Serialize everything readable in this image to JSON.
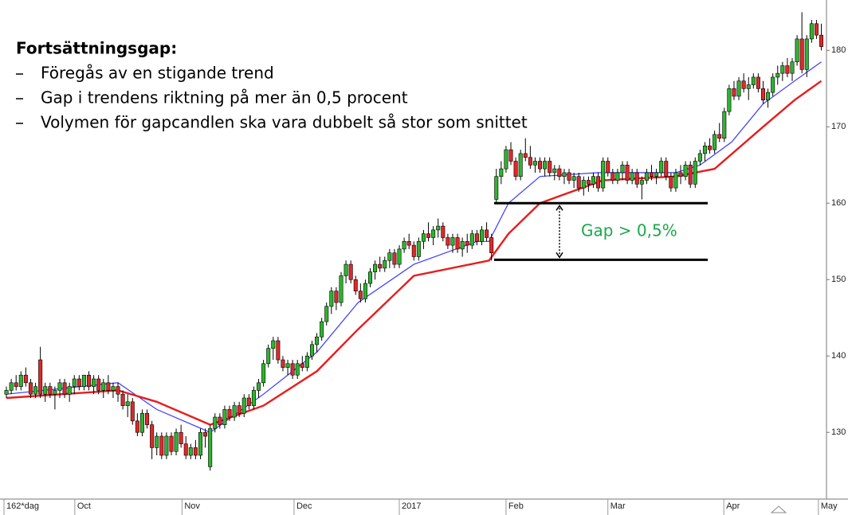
{
  "chart_data": {
    "type": "candlestick",
    "title": "Fortsättningsgap:",
    "bullets": [
      "Föregås av en stigande trend",
      "Gap i trendens riktning på mer än 0,5 procent",
      "Volymen för gapcandlen ska vara dubbelt så stor som snittet"
    ],
    "up_color": "#2db52d",
    "down_color": "#e02828",
    "xlim": [
      -0.5,
      168.9
    ],
    "xticks": [
      {
        "value": -0.5,
        "label": "162*dag"
      },
      {
        "value": 14.1,
        "label": "Oct"
      },
      {
        "value": 36.2,
        "label": "Nov"
      },
      {
        "value": 59.3,
        "label": "Dec"
      },
      {
        "value": 81,
        "label": "2017"
      },
      {
        "value": 103,
        "label": "Feb"
      },
      {
        "value": 124,
        "label": "Mar"
      },
      {
        "value": 147.9,
        "label": "Apr"
      },
      {
        "value": 167.4,
        "label": "May"
      }
    ],
    "ylim": [
      122,
      186.6
    ],
    "yticks": [
      130,
      140,
      150,
      160,
      170,
      180
    ],
    "gap": {
      "upper": 160,
      "lower": 152.6,
      "label": "Gap > 0,5%",
      "color": "#1aa84a"
    },
    "moving_averages": [
      {
        "color": "#3a3aff",
        "x": [
          0,
          23,
          31,
          42,
          53,
          64,
          72.5,
          84,
          97,
          99.5,
          103.5,
          110,
          122,
          138,
          143,
          149.5,
          156,
          162.5,
          168
        ],
        "values": [
          135,
          136.5,
          133,
          130,
          135,
          140.5,
          147,
          152,
          155,
          155,
          160,
          163.5,
          164,
          164,
          165,
          168,
          173,
          176,
          178.5
        ]
      },
      {
        "color": "#e81c1c",
        "x": [
          0,
          23,
          31,
          42,
          53,
          64,
          72.5,
          84,
          99.5,
          103.5,
          110,
          123,
          138,
          146,
          156,
          162.5,
          168
        ],
        "values": [
          134.5,
          135.5,
          134,
          131,
          133.5,
          138,
          143.5,
          150.5,
          152.5,
          156,
          160,
          163,
          163.5,
          164.5,
          170,
          173.5,
          176
        ]
      }
    ],
    "ohlc": [
      [
        135,
        136,
        134.5,
        135.5
      ],
      [
        135.5,
        137,
        135,
        136.5
      ],
      [
        136.5,
        137.5,
        135.5,
        136
      ],
      [
        136,
        138,
        135.5,
        137.5
      ],
      [
        137.5,
        138.5,
        136,
        136.5
      ],
      [
        136.5,
        137,
        134.5,
        135
      ],
      [
        135,
        136.5,
        134.5,
        136
      ],
      [
        139.5,
        141.2,
        134.5,
        135
      ],
      [
        135,
        136.5,
        134,
        136
      ],
      [
        136,
        136.5,
        134.5,
        135
      ],
      [
        135,
        136,
        133,
        135.5
      ],
      [
        135.5,
        137,
        134.5,
        136.5
      ],
      [
        136.5,
        137,
        134.5,
        135
      ],
      [
        135,
        136.5,
        134,
        136
      ],
      [
        136,
        137.5,
        135,
        137
      ],
      [
        137,
        137.5,
        135.5,
        136
      ],
      [
        136,
        137.5,
        135.5,
        137.5
      ],
      [
        137.5,
        138,
        135.5,
        136
      ],
      [
        136,
        137.5,
        135,
        137
      ],
      [
        137,
        137.5,
        135,
        135.5
      ],
      [
        135.5,
        137,
        134.5,
        136.5
      ],
      [
        136.5,
        137.5,
        135,
        135.5
      ],
      [
        135.5,
        136.5,
        134.5,
        136
      ],
      [
        136,
        136.5,
        134,
        135
      ],
      [
        135,
        135.5,
        133,
        133.5
      ],
      [
        133.5,
        135,
        132,
        134
      ],
      [
        134,
        134.5,
        131,
        131.5
      ],
      [
        131.5,
        132.5,
        129.5,
        130
      ],
      [
        130,
        133,
        129.5,
        132.5
      ],
      [
        132.5,
        133,
        130.5,
        131
      ],
      [
        131,
        131.5,
        126.5,
        128
      ],
      [
        128,
        130,
        127,
        129.5
      ],
      [
        129.5,
        130,
        126.5,
        127
      ],
      [
        127,
        130,
        126.5,
        129.5
      ],
      [
        129.5,
        130,
        127,
        127.5
      ],
      [
        127.5,
        130.5,
        127,
        130
      ],
      [
        130,
        131,
        128,
        128.5
      ],
      [
        128.5,
        129.5,
        126.5,
        127
      ],
      [
        127,
        128.5,
        126.5,
        128
      ],
      [
        128,
        129,
        126.5,
        127
      ],
      [
        127,
        130.5,
        126.5,
        130
      ],
      [
        130,
        130.5,
        128,
        129.5
      ],
      [
        125.5,
        131,
        125,
        130.5
      ],
      [
        130.5,
        132.5,
        130,
        132
      ],
      [
        132,
        132.5,
        130.5,
        131
      ],
      [
        131,
        133.5,
        130.5,
        133
      ],
      [
        133,
        133.5,
        131.5,
        132
      ],
      [
        132,
        134,
        131.5,
        133.5
      ],
      [
        133.5,
        134,
        132,
        132.5
      ],
      [
        132.5,
        135,
        132,
        134.5
      ],
      [
        134.5,
        135,
        133,
        133.5
      ],
      [
        133.5,
        136,
        133,
        135.5
      ],
      [
        135.5,
        137,
        134.5,
        136.5
      ],
      [
        136.5,
        139.5,
        136,
        139
      ],
      [
        139,
        141.5,
        138.5,
        141
      ],
      [
        141,
        142.5,
        139.5,
        142
      ],
      [
        142,
        142.5,
        139,
        139.5
      ],
      [
        139.5,
        140,
        138,
        138.5
      ],
      [
        138.5,
        139.5,
        137.5,
        139
      ],
      [
        139,
        139.5,
        137,
        137.5
      ],
      [
        137.5,
        139.5,
        137,
        139
      ],
      [
        139,
        140,
        138,
        138.5
      ],
      [
        138.5,
        140.5,
        138,
        140
      ],
      [
        140,
        142,
        139.5,
        141.5
      ],
      [
        141.5,
        143,
        140.5,
        142.5
      ],
      [
        142.5,
        145,
        142,
        144.5
      ],
      [
        144.5,
        147,
        144,
        146.5
      ],
      [
        146.5,
        149,
        145.5,
        148.5
      ],
      [
        148.5,
        149,
        146,
        147
      ],
      [
        147,
        151,
        146.5,
        150.5
      ],
      [
        150.5,
        152.5,
        149.5,
        152
      ],
      [
        152,
        152.5,
        149.5,
        150
      ],
      [
        150,
        150.5,
        148,
        148.5
      ],
      [
        148.5,
        149.5,
        147,
        147.5
      ],
      [
        147.5,
        150,
        147,
        149.5
      ],
      [
        149.5,
        151.5,
        149,
        151
      ],
      [
        151,
        152.5,
        150,
        152
      ],
      [
        152,
        153,
        151,
        151.5
      ],
      [
        151.5,
        153,
        151,
        152.5
      ],
      [
        152.5,
        154,
        151.5,
        153.5
      ],
      [
        153.5,
        154,
        151.5,
        152
      ],
      [
        152,
        154.5,
        151.5,
        154
      ],
      [
        154,
        155.5,
        153.5,
        155
      ],
      [
        155,
        156,
        154,
        154.5
      ],
      [
        154.5,
        155,
        152.5,
        153
      ],
      [
        153,
        155.5,
        152.5,
        155
      ],
      [
        155,
        156.5,
        154,
        156
      ],
      [
        156,
        157.5,
        155,
        155.5
      ],
      [
        155.5,
        157,
        154.5,
        156.5
      ],
      [
        156.5,
        158,
        155.5,
        157
      ],
      [
        157,
        157.5,
        155,
        155.5
      ],
      [
        155.5,
        156,
        154,
        154.5
      ],
      [
        154.5,
        156,
        153.5,
        155.5
      ],
      [
        155.5,
        156,
        153.5,
        154
      ],
      [
        154,
        155.5,
        153,
        155
      ],
      [
        155,
        156,
        153.5,
        154.5
      ],
      [
        154.5,
        156.5,
        154,
        156
      ],
      [
        156,
        156.5,
        154.5,
        155
      ],
      [
        155,
        157,
        154.5,
        156.5
      ],
      [
        156.5,
        157.5,
        155,
        155.5
      ],
      [
        155.5,
        156,
        152.5,
        153.5
      ],
      [
        160.5,
        164.5,
        160,
        163.5
      ],
      [
        163.5,
        165.5,
        162.5,
        164.5
      ],
      [
        164.5,
        167.5,
        164,
        167
      ],
      [
        167,
        168,
        165,
        165.5
      ],
      [
        165.5,
        166,
        163,
        163.5
      ],
      [
        163.5,
        167,
        163,
        166.5
      ],
      [
        166.5,
        168.5,
        165.5,
        166
      ],
      [
        166,
        167.5,
        164.5,
        165
      ],
      [
        165,
        166,
        164,
        165.5
      ],
      [
        165.5,
        166,
        164,
        164.5
      ],
      [
        164.5,
        166,
        163.5,
        165.5
      ],
      [
        165.5,
        166,
        163.5,
        164
      ],
      [
        164,
        165,
        163,
        164.5
      ],
      [
        164.5,
        165,
        163,
        163.5
      ],
      [
        163.5,
        164.5,
        162.5,
        164
      ],
      [
        164,
        164.5,
        162.5,
        163
      ],
      [
        163,
        164,
        162,
        163.5
      ],
      [
        163.5,
        164,
        161.5,
        162
      ],
      [
        162,
        163.5,
        161,
        163
      ],
      [
        163,
        163.5,
        161.5,
        162.5
      ],
      [
        162.5,
        164,
        162,
        163.5
      ],
      [
        163.5,
        164,
        161.5,
        162
      ],
      [
        162,
        166,
        161.5,
        165.5
      ],
      [
        165.5,
        166,
        163.5,
        164
      ],
      [
        164,
        164.5,
        162.5,
        163
      ],
      [
        163,
        164.5,
        162.5,
        164
      ],
      [
        164,
        165.5,
        163,
        165
      ],
      [
        165,
        165.5,
        162.5,
        163
      ],
      [
        163,
        164.5,
        162.5,
        164
      ],
      [
        164,
        164.5,
        162,
        162.5
      ],
      [
        162.5,
        163.5,
        160.5,
        163
      ],
      [
        163,
        164.5,
        162.5,
        164
      ],
      [
        164,
        165,
        163,
        163.5
      ],
      [
        163.5,
        164.5,
        162.5,
        164
      ],
      [
        164,
        166,
        163.5,
        165.5
      ],
      [
        165.5,
        166,
        163,
        163.5
      ],
      [
        163.5,
        164,
        161.5,
        162
      ],
      [
        162,
        164.5,
        161.5,
        164
      ],
      [
        164,
        165,
        162.5,
        163.5
      ],
      [
        163.5,
        165.5,
        163,
        165
      ],
      [
        165,
        165.5,
        162,
        162.5
      ],
      [
        162.5,
        166,
        162,
        165.5
      ],
      [
        165.5,
        167,
        165,
        166.5
      ],
      [
        166.5,
        168,
        165.5,
        167.5
      ],
      [
        167.5,
        168.5,
        166.5,
        167
      ],
      [
        167,
        169.5,
        166.5,
        169
      ],
      [
        169,
        170.5,
        168,
        168.5
      ],
      [
        168.5,
        172.5,
        168,
        172
      ],
      [
        172,
        175.5,
        171.5,
        175
      ],
      [
        175,
        176,
        173.5,
        174
      ],
      [
        174,
        176.5,
        173.5,
        176
      ],
      [
        176,
        177,
        174.5,
        175
      ],
      [
        175,
        176.5,
        173.5,
        175.5
      ],
      [
        175.5,
        177,
        175,
        176.5
      ],
      [
        176.5,
        177,
        174.5,
        175
      ],
      [
        175,
        176,
        173,
        173.5
      ],
      [
        173.5,
        175,
        172.5,
        174.5
      ],
      [
        174.5,
        177,
        174,
        176.5
      ],
      [
        176.5,
        178,
        175.5,
        177
      ],
      [
        177,
        178.5,
        176,
        178
      ],
      [
        178,
        179,
        176.5,
        177
      ],
      [
        177,
        179,
        176,
        178.5
      ],
      [
        178.5,
        182,
        178,
        181.5
      ],
      [
        181.5,
        185,
        177,
        177.5
      ],
      [
        177.5,
        182,
        176.5,
        181.5
      ],
      [
        181.5,
        184,
        181,
        183.5
      ],
      [
        183.5,
        184,
        181.5,
        182
      ],
      [
        182,
        183.5,
        180,
        180.5
      ]
    ]
  }
}
